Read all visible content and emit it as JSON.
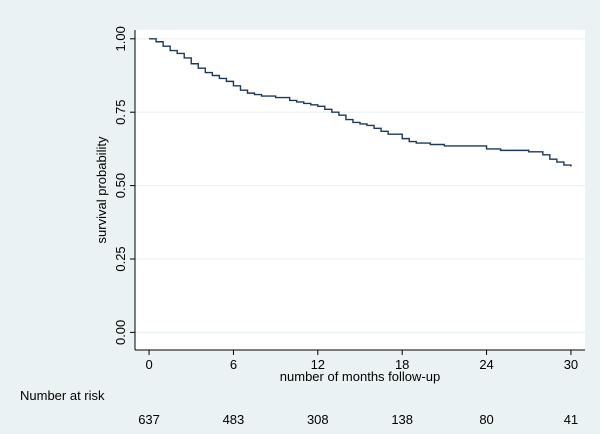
{
  "chart_data": {
    "type": "line",
    "title": "",
    "xlabel": "number of months follow-up",
    "ylabel": "survival probability",
    "xlim": [
      -1,
      31
    ],
    "ylim": [
      -0.06,
      1.03
    ],
    "xticks": [
      0,
      6,
      12,
      18,
      24,
      30
    ],
    "yticks": [
      0.0,
      0.25,
      0.5,
      0.75,
      1.0
    ],
    "xtick_labels": [
      "0",
      "6",
      "12",
      "18",
      "24",
      "30"
    ],
    "ytick_labels": [
      "0.00",
      "0.25",
      "0.50",
      "0.75",
      "1.00"
    ],
    "grid": "horizontal",
    "line_style": "step",
    "line_color": "#1b3a5b",
    "series": [
      {
        "x": [
          0,
          0.5,
          1,
          1.5,
          2,
          2.5,
          3,
          3.5,
          4,
          4.5,
          5,
          5.5,
          6,
          6.5,
          7,
          7.5,
          8,
          9,
          10,
          10.5,
          11,
          11.5,
          12,
          12.5,
          13,
          13.5,
          14,
          14.5,
          15,
          15.5,
          16,
          16.5,
          17,
          18,
          18.5,
          19,
          20,
          21,
          22,
          23,
          24,
          25,
          26,
          27,
          28,
          28.5,
          29,
          29.5,
          30
        ],
        "y": [
          1.0,
          0.99,
          0.975,
          0.96,
          0.95,
          0.935,
          0.915,
          0.9,
          0.885,
          0.875,
          0.865,
          0.855,
          0.84,
          0.825,
          0.815,
          0.81,
          0.805,
          0.8,
          0.79,
          0.785,
          0.78,
          0.775,
          0.77,
          0.76,
          0.75,
          0.74,
          0.725,
          0.715,
          0.71,
          0.705,
          0.695,
          0.685,
          0.675,
          0.66,
          0.65,
          0.645,
          0.64,
          0.635,
          0.635,
          0.635,
          0.625,
          0.62,
          0.62,
          0.615,
          0.605,
          0.59,
          0.58,
          0.57,
          0.565
        ]
      }
    ],
    "risk_table": {
      "label": "Number at risk",
      "x": [
        0,
        6,
        12,
        18,
        24,
        30
      ],
      "counts": [
        "637",
        "483",
        "308",
        "138",
        "80",
        "41"
      ]
    }
  },
  "colors": {
    "background": "#eaf2f3",
    "plot_background": "#ffffff",
    "grid": "#eaf2f3",
    "axis": "#000000"
  }
}
